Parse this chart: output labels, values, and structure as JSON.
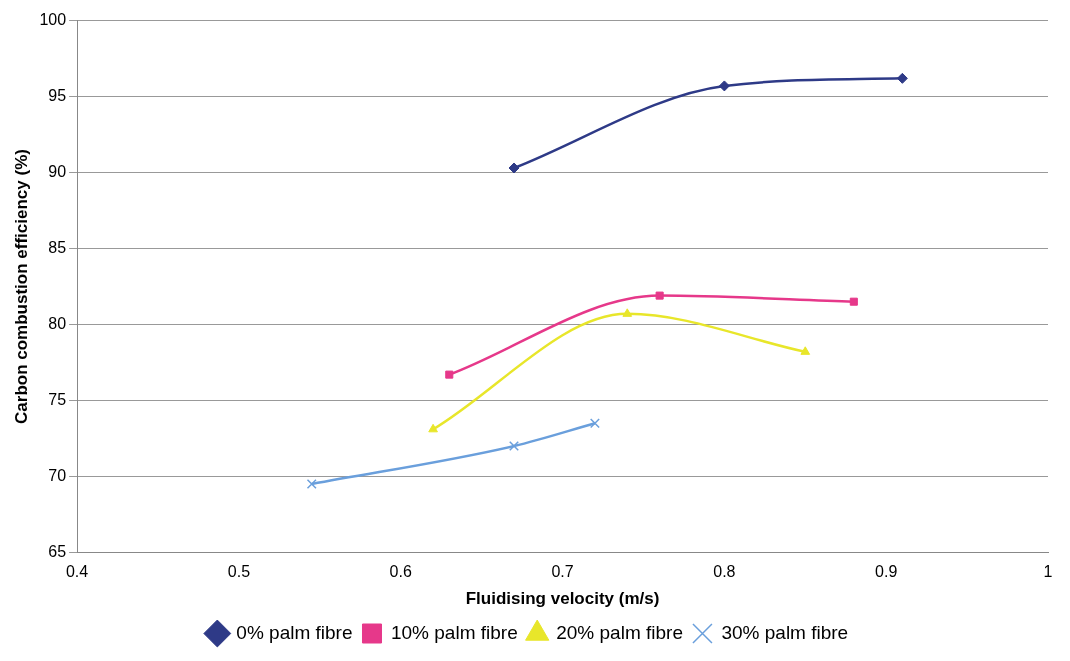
{
  "chart_data": {
    "type": "line",
    "xlabel": "Fluidising velocity (m/s)",
    "ylabel": "Carbon combustion efficiency (%)",
    "xlim": [
      0.4,
      1
    ],
    "xticks": [
      0.4,
      0.5,
      0.6,
      0.7,
      0.8,
      0.9,
      1
    ],
    "ylim": [
      65,
      100
    ],
    "yticks": [
      65,
      70,
      75,
      80,
      85,
      90,
      95,
      100
    ],
    "grid": "y",
    "legend": "bottom",
    "series": [
      {
        "name": "0% palm fibre",
        "color": "#2e3a87",
        "marker": "diamond",
        "x": [
          0.67,
          0.8,
          0.91
        ],
        "values": [
          90.3,
          95.7,
          96.2
        ]
      },
      {
        "name": "10% palm fibre",
        "color": "#e6388a",
        "marker": "square",
        "x": [
          0.63,
          0.76,
          0.88
        ],
        "values": [
          76.7,
          81.9,
          81.5
        ]
      },
      {
        "name": "20% palm fibre",
        "color": "#e8e62a",
        "marker": "triangle",
        "x": [
          0.62,
          0.74,
          0.85
        ],
        "values": [
          73.1,
          80.7,
          78.2
        ]
      },
      {
        "name": "30% palm fibre",
        "color": "#6a9fdc",
        "marker": "cross",
        "x": [
          0.545,
          0.67,
          0.72
        ],
        "values": [
          69.5,
          72.0,
          73.5
        ]
      }
    ]
  }
}
